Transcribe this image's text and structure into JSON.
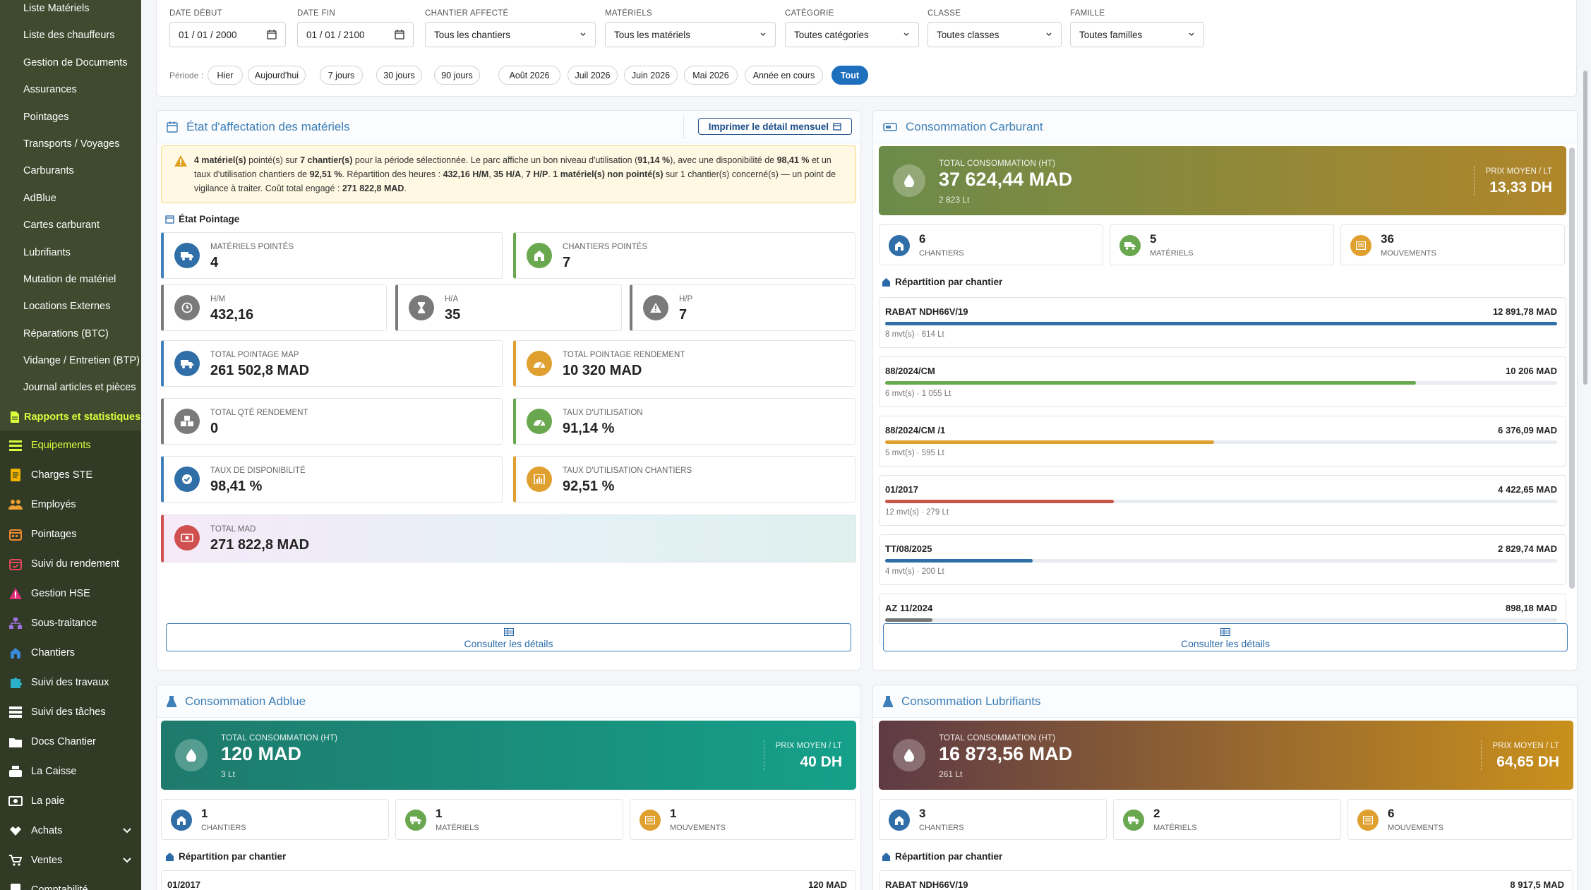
{
  "sidebar": {
    "sub_items": [
      "Liste Matériels",
      "Liste des chauffeurs",
      "Gestion de Documents",
      "Assurances",
      "Pointages",
      "Transports / Voyages",
      "Carburants",
      "AdBlue",
      "Cartes carburant",
      "Lubrifiants",
      "Mutation de matériel",
      "Locations Externes",
      "Réparations (BTC)",
      "Vidange / Entretien (BTP)",
      "Journal articles et pièces"
    ],
    "active_item": "Rapports et statistiques",
    "main_items": [
      "Equipements",
      "Charges STE",
      "Employés",
      "Pointages",
      "Suivi du rendement",
      "Gestion HSE",
      "Sous-traitance",
      "Chantiers",
      "Suivi des travaux",
      "Suivi des tâches",
      "Docs Chantier",
      "La Caisse",
      "La paie",
      "Achats",
      "Ventes",
      "Comptabilité"
    ],
    "colors": {
      "bg": "#3f4a2f",
      "active": "#d9ff3c"
    }
  },
  "filters": {
    "date_debut_label": "DATE DÉBUT",
    "date_debut": "01 / 01 / 2000",
    "date_fin_label": "DATE FIN",
    "date_fin": "01 / 01 / 2100",
    "chantier_label": "CHANTIER AFFECTÉ",
    "chantier": "Tous les chantiers",
    "materiels_label": "MATÉRIELS",
    "materiels": "Tous les matériels",
    "categorie_label": "CATÉGORIE",
    "categorie": "Toutes catégories",
    "classe_label": "CLASSE",
    "classe": "Toutes classes",
    "famille_label": "FAMILLE",
    "famille": "Toutes familles",
    "period_label": "Période :",
    "periods": [
      "Hier",
      "Aujourd'hui",
      "7 jours",
      "30 jours",
      "90 jours",
      "Août 2026",
      "Juil 2026",
      "Juin 2026",
      "Mai 2026",
      "Année en cours",
      "Tout"
    ],
    "active_period": "Tout"
  },
  "affectation": {
    "title": "État d'affectation des matériels",
    "print_label": "Imprimer le détail mensuel",
    "alert_html": "<b>4 matériel(s)</b> pointé(s) sur <b>7 chantier(s)</b> pour la période sélectionnée. Le parc affiche un bon niveau d'utilisation (<b>91,14 %</b>), avec une disponibilité de <b>98,41 %</b> et un taux d'utilisation chantiers de <b>92,51 %</b>. Répartition des heures : <b>432,16 H/M</b>, <b>35 H/A</b>, <b>7 H/P</b>. <b>1 matériel(s) non pointé(s)</b> sur 1 chantier(s) concerné(s) — un point de vigilance à traiter. Coût total engagé : <b>271 822,8 MAD</b>.",
    "section_title": "État Pointage",
    "stats": {
      "materiels_pointes": {
        "label": "MATÉRIELS POINTÉS",
        "value": "4"
      },
      "chantiers_pointes": {
        "label": "CHANTIERS POINTÉS",
        "value": "7"
      },
      "hm": {
        "label": "H/M",
        "value": "432,16"
      },
      "ha": {
        "label": "H/A",
        "value": "35"
      },
      "hp": {
        "label": "H/P",
        "value": "7"
      },
      "total_map": {
        "label": "TOTAL POINTAGE MAP",
        "value": "261 502,8 MAD"
      },
      "total_rendement": {
        "label": "TOTAL POINTAGE RENDEMENT",
        "value": "10 320 MAD"
      },
      "qte_rendement": {
        "label": "TOTAL QTÉ RENDEMENT",
        "value": "0"
      },
      "taux_utilisation": {
        "label": "TAUX D'UTILISATION",
        "value": "91,14 %"
      },
      "taux_disponibilite": {
        "label": "TAUX DE DISPONIBILITÉ",
        "value": "98,41 %"
      },
      "taux_chantiers": {
        "label": "TAUX D'UTILISATION CHANTIERS",
        "value": "92,51 %"
      },
      "total_mad": {
        "label": "TOTAL MAD",
        "value": "271 822,8 MAD"
      }
    },
    "details_label": "Consulter les détails"
  },
  "carburant": {
    "title": "Consommation Carburant",
    "total_label": "TOTAL CONSOMMATION (HT)",
    "total_value": "37 624,44 MAD",
    "total_sub": "2 823 Lt",
    "prix_label": "PRIX MOYEN / LT",
    "prix_value": "13,33 DH",
    "chantiers": {
      "value": "6",
      "label": "CHANTIERS"
    },
    "materiels": {
      "value": "5",
      "label": "MATÉRIELS"
    },
    "mouvements": {
      "value": "36",
      "label": "MOUVEMENTS"
    },
    "repartition_title": "Répartition par chantier",
    "rows": [
      {
        "name": "RABAT NDH66V/19",
        "amount": "12 891,78 MAD",
        "sub": "8 mvt(s) · 614 Lt",
        "share": 1.0,
        "color": "#2f6ea6"
      },
      {
        "name": "88/2024/CM",
        "amount": "10 206 MAD",
        "sub": "6 mvt(s) · 1 055 Lt",
        "share": 0.79,
        "color": "#6aa84f"
      },
      {
        "name": "88/2024/CM /1",
        "amount": "6 376,09 MAD",
        "sub": "5 mvt(s) · 595 Lt",
        "share": 0.49,
        "color": "#e0a030"
      },
      {
        "name": "01/2017",
        "amount": "4 422,65 MAD",
        "sub": "12 mvt(s) · 279 Lt",
        "share": 0.34,
        "color": "#c8574a"
      },
      {
        "name": "TT/08/2025",
        "amount": "2 829,74 MAD",
        "sub": "4 mvt(s) · 200 Lt",
        "share": 0.22,
        "color": "#2f6ea6"
      },
      {
        "name": "AZ 11/2024",
        "amount": "898,18 MAD",
        "sub": "",
        "share": 0.07,
        "color": "#777777"
      }
    ],
    "details_label": "Consulter les détails",
    "banner_colors": [
      "#6b8b4a",
      "#b0862a"
    ]
  },
  "adblue": {
    "title": "Consommation Adblue",
    "total_label": "TOTAL CONSOMMATION (HT)",
    "total_value": "120 MAD",
    "total_sub": "3 Lt",
    "prix_label": "PRIX MOYEN / LT",
    "prix_value": "40 DH",
    "chantiers": {
      "value": "1",
      "label": "CHANTIERS"
    },
    "materiels": {
      "value": "1",
      "label": "MATÉRIELS"
    },
    "mouvements": {
      "value": "1",
      "label": "MOUVEMENTS"
    },
    "repartition_title": "Répartition par chantier",
    "first_row": {
      "name": "01/2017",
      "amount": "120 MAD"
    },
    "banner_colors": [
      "#1e7a6c",
      "#15a08a"
    ]
  },
  "lubrifiants": {
    "title": "Consommation Lubrifiants",
    "total_label": "TOTAL CONSOMMATION (HT)",
    "total_value": "16 873,56 MAD",
    "total_sub": "261 Lt",
    "prix_label": "PRIX MOYEN / LT",
    "prix_value": "64,65 DH",
    "chantiers": {
      "value": "3",
      "label": "CHANTIERS"
    },
    "materiels": {
      "value": "2",
      "label": "MATÉRIELS"
    },
    "mouvements": {
      "value": "6",
      "label": "MOUVEMENTS"
    },
    "repartition_title": "Répartition par chantier",
    "first_row": {
      "name": "RABAT NDH66V/19",
      "amount": "8 917,5 MAD"
    },
    "banner_colors": [
      "#5e3a45",
      "#c9901c"
    ]
  }
}
